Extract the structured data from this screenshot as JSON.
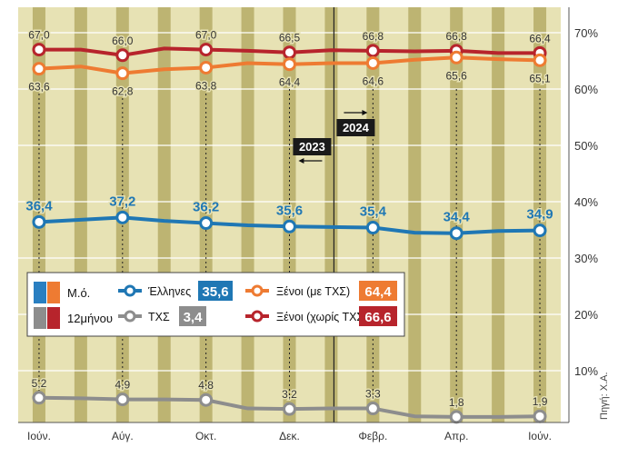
{
  "chart_data": {
    "type": "line",
    "categories": [
      "Ιούν.",
      "",
      "Αύγ.",
      "",
      "Οκτ.",
      "",
      "Δεκ.",
      "",
      "Φεβρ.",
      "",
      "Απρ.",
      "",
      "Ιούν."
    ],
    "ylim": [
      0,
      75
    ],
    "yticks": [
      "10%",
      "20%",
      "30%",
      "40%",
      "50%",
      "60%",
      "70%"
    ],
    "grid": true,
    "year_markers": [
      {
        "label": "2023",
        "arrow": "left"
      },
      {
        "label": "2024",
        "arrow": "right"
      }
    ],
    "series": [
      {
        "key": "foreign_no_txs",
        "values": [
          67.0,
          67.0,
          66.0,
          67.2,
          67.0,
          66.8,
          66.5,
          66.9,
          66.8,
          66.7,
          66.8,
          66.4,
          66.4
        ],
        "labels": [
          "67,0",
          "",
          "66,0",
          "",
          "67,0",
          "",
          "66,5",
          "",
          "66,8",
          "",
          "66,8",
          "",
          "66,4"
        ],
        "color": "#b7242c",
        "label_position": "above"
      },
      {
        "key": "foreign_with_txs",
        "values": [
          63.6,
          64.0,
          62.8,
          63.5,
          63.8,
          64.6,
          64.4,
          64.6,
          64.6,
          65.2,
          65.6,
          65.3,
          65.1
        ],
        "labels": [
          "63,6",
          "",
          "62,8",
          "",
          "63,8",
          "",
          "64,4",
          "",
          "64,6",
          "",
          "65,6",
          "",
          "65,1"
        ],
        "color": "#ee7b32",
        "label_position": "below"
      },
      {
        "key": "greeks",
        "values": [
          36.4,
          36.8,
          37.2,
          36.6,
          36.2,
          35.8,
          35.6,
          35.5,
          35.4,
          34.5,
          34.4,
          34.8,
          34.9
        ],
        "labels": [
          "36,4",
          "",
          "37,2",
          "",
          "36,2",
          "",
          "35,6",
          "",
          "35,4",
          "",
          "34,4",
          "",
          "34,9"
        ],
        "color": "#1f77b4",
        "label_position": "above"
      },
      {
        "key": "txs",
        "values": [
          5.2,
          5.1,
          4.9,
          4.9,
          4.8,
          3.3,
          3.2,
          3.3,
          3.3,
          1.9,
          1.8,
          1.8,
          1.9
        ],
        "labels": [
          "5,2",
          "",
          "4,9",
          "",
          "4,8",
          "",
          "3,2",
          "",
          "3,3",
          "",
          "1,8",
          "",
          "1,9"
        ],
        "color": "#8d8d8d",
        "label_position": "above"
      }
    ],
    "legend": {
      "position": "center-left",
      "row1_title": "Μ.ό.",
      "row2_title": "12μήνου",
      "items": [
        {
          "series": "greeks",
          "name": "Έλληνες",
          "value": "35,6",
          "color": "#1f77b4"
        },
        {
          "series": "foreign_with_txs",
          "name": "Ξένοι (με ΤΧΣ)",
          "value": "64,4",
          "color": "#ee7b32"
        },
        {
          "series": "txs",
          "name": "ΤΧΣ",
          "value": "3,4",
          "color": "#8d8d8d"
        },
        {
          "series": "foreign_no_txs",
          "name": "Ξένοι (χωρίς ΤΧΣ)",
          "value": "66,6",
          "color": "#b7242c"
        }
      ]
    },
    "credit": "Πηγή: Χ.Α."
  }
}
